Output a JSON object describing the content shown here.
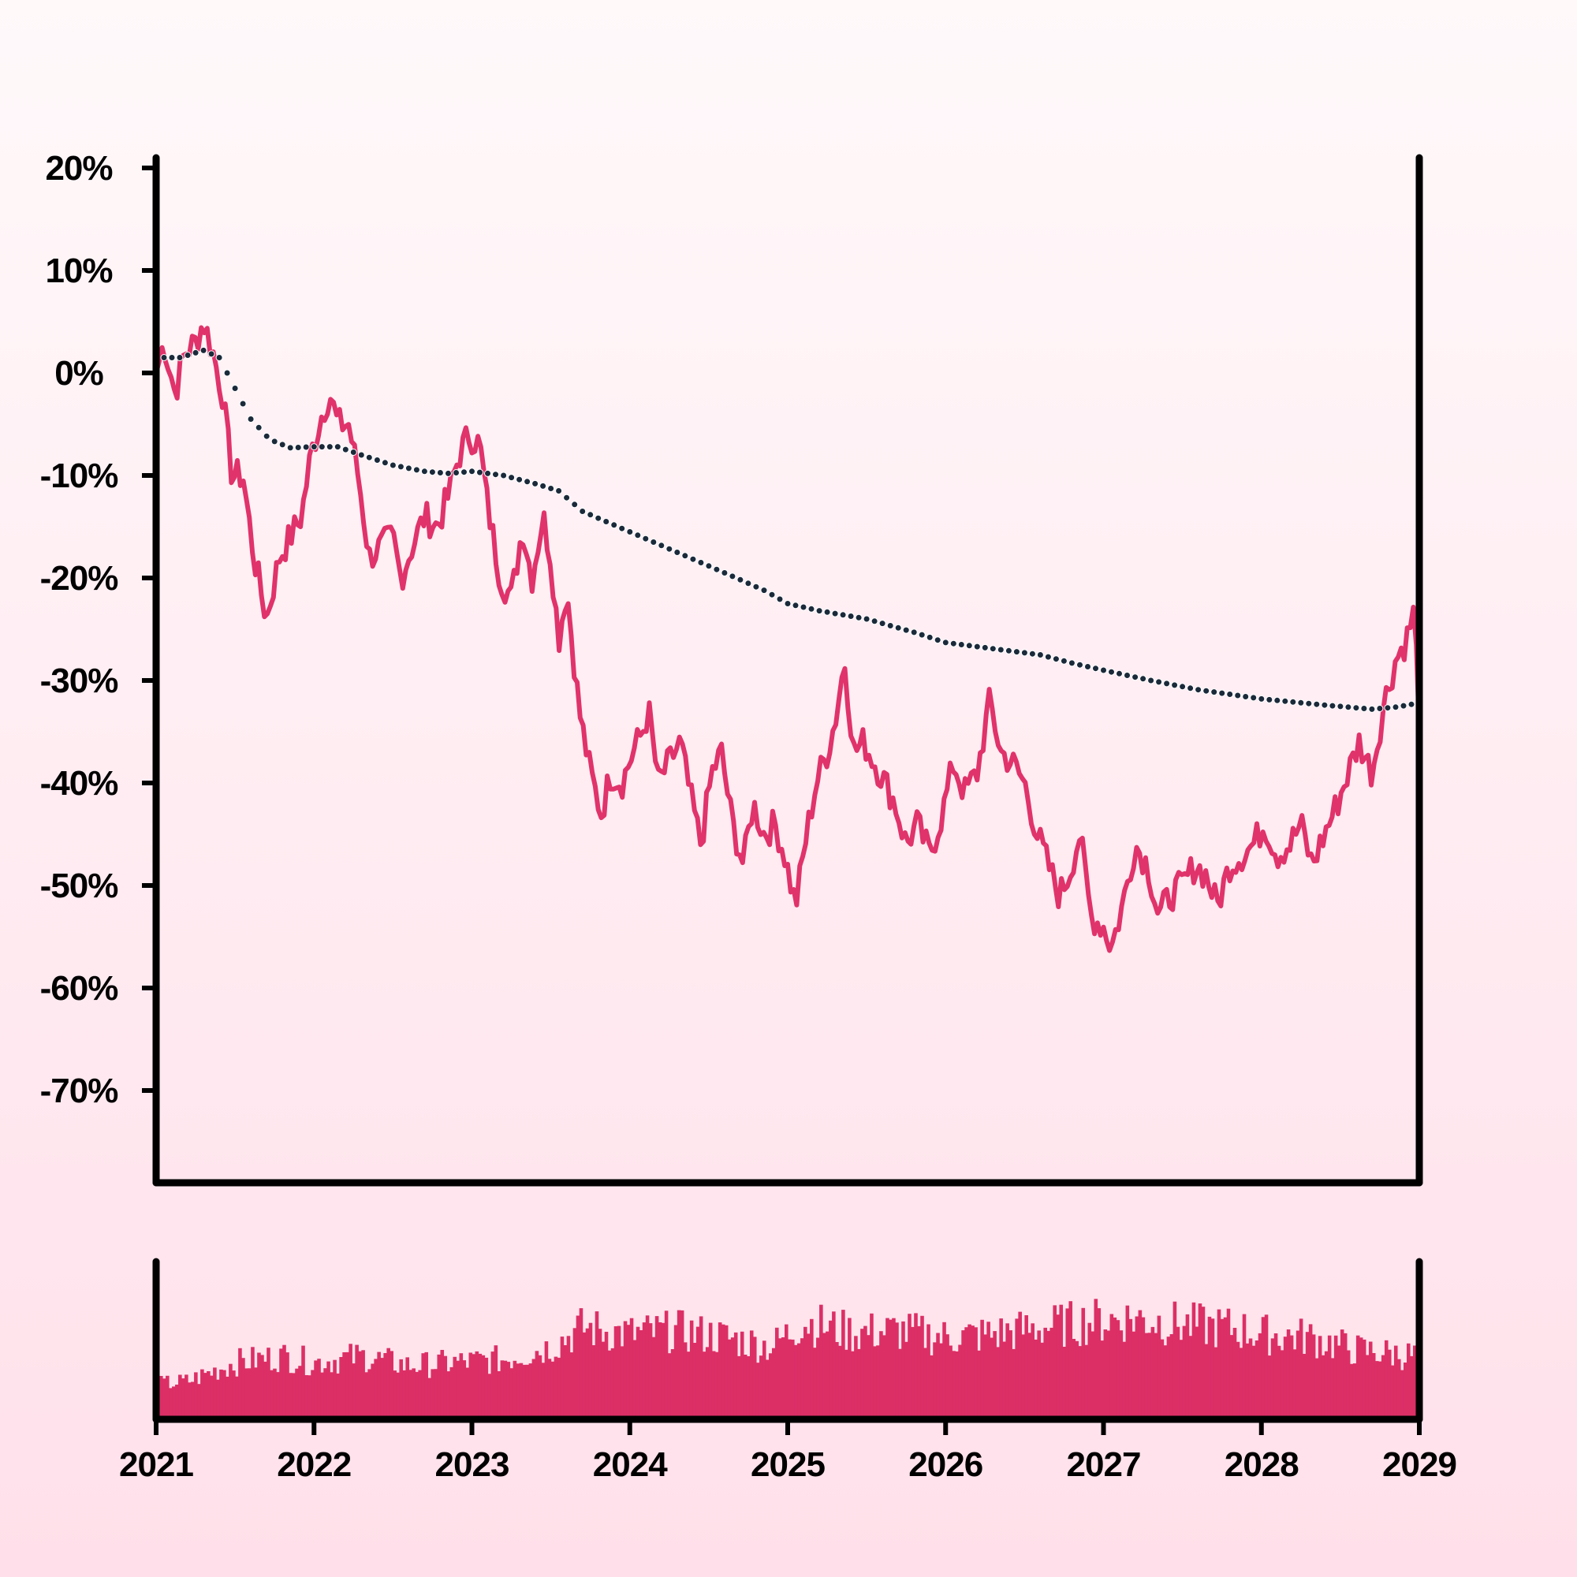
{
  "chart_data": {
    "type": "line",
    "title": "",
    "xlabel": "",
    "ylabel": "",
    "x_range": [
      2021,
      2029
    ],
    "ylim": [
      -78,
      21
    ],
    "y_ticks": [
      20,
      10,
      0,
      -10,
      -20,
      -30,
      -40,
      -50,
      -60,
      -70
    ],
    "y_tick_labels": [
      "20%",
      "10%",
      "0%",
      "-10%",
      "-20%",
      "-30%",
      "-40%",
      "-50%",
      "-60%",
      "-70%"
    ],
    "x_ticks": [
      2021,
      2022,
      2023,
      2024,
      2025,
      2026,
      2027,
      2028,
      2029
    ],
    "x_tick_labels": [
      "2021",
      "2022",
      "2023",
      "2024",
      "2025",
      "2026",
      "2027",
      "2028",
      "2029"
    ],
    "grid": false,
    "colors": {
      "price": "#e0336b",
      "trend": "#1a2a3a",
      "volume": "#dc2f66",
      "axis": "#000000"
    },
    "series": [
      {
        "role": "price",
        "style": "solid-line",
        "points": [
          [
            2021.0,
            0
          ],
          [
            2021.05,
            3
          ],
          [
            2021.12,
            -2
          ],
          [
            2021.18,
            2
          ],
          [
            2021.25,
            3
          ],
          [
            2021.3,
            5
          ],
          [
            2021.36,
            2
          ],
          [
            2021.42,
            -2
          ],
          [
            2021.48,
            -10
          ],
          [
            2021.55,
            -10
          ],
          [
            2021.62,
            -18
          ],
          [
            2021.7,
            -24
          ],
          [
            2021.78,
            -18
          ],
          [
            2021.85,
            -16
          ],
          [
            2021.92,
            -14
          ],
          [
            2021.98,
            -8
          ],
          [
            2022.05,
            -4
          ],
          [
            2022.1,
            -2
          ],
          [
            2022.15,
            -5
          ],
          [
            2022.22,
            -5
          ],
          [
            2022.28,
            -10
          ],
          [
            2022.35,
            -18
          ],
          [
            2022.42,
            -17
          ],
          [
            2022.5,
            -16
          ],
          [
            2022.55,
            -20
          ],
          [
            2022.62,
            -17
          ],
          [
            2022.7,
            -14
          ],
          [
            2022.78,
            -15
          ],
          [
            2022.85,
            -12
          ],
          [
            2022.92,
            -8
          ],
          [
            2022.98,
            -6
          ],
          [
            2023.05,
            -7
          ],
          [
            2023.1,
            -13
          ],
          [
            2023.18,
            -20
          ],
          [
            2023.25,
            -22
          ],
          [
            2023.32,
            -15
          ],
          [
            2023.38,
            -20
          ],
          [
            2023.45,
            -14
          ],
          [
            2023.5,
            -18
          ],
          [
            2023.55,
            -26
          ],
          [
            2023.6,
            -21
          ],
          [
            2023.68,
            -33
          ],
          [
            2023.75,
            -39
          ],
          [
            2023.82,
            -43
          ],
          [
            2023.88,
            -39
          ],
          [
            2023.95,
            -40
          ],
          [
            2024.02,
            -37
          ],
          [
            2024.08,
            -35
          ],
          [
            2024.12,
            -33
          ],
          [
            2024.18,
            -40
          ],
          [
            2024.25,
            -38
          ],
          [
            2024.32,
            -36
          ],
          [
            2024.38,
            -41
          ],
          [
            2024.45,
            -46
          ],
          [
            2024.52,
            -39
          ],
          [
            2024.58,
            -37
          ],
          [
            2024.65,
            -44
          ],
          [
            2024.72,
            -48
          ],
          [
            2024.78,
            -42
          ],
          [
            2024.85,
            -45
          ],
          [
            2024.92,
            -44
          ],
          [
            2024.98,
            -47
          ],
          [
            2025.05,
            -52
          ],
          [
            2025.12,
            -45
          ],
          [
            2025.18,
            -40
          ],
          [
            2025.25,
            -37
          ],
          [
            2025.3,
            -34
          ],
          [
            2025.36,
            -28
          ],
          [
            2025.42,
            -37
          ],
          [
            2025.48,
            -36
          ],
          [
            2025.55,
            -38
          ],
          [
            2025.62,
            -40
          ],
          [
            2025.68,
            -42
          ],
          [
            2025.75,
            -46
          ],
          [
            2025.82,
            -44
          ],
          [
            2025.9,
            -47
          ],
          [
            2025.98,
            -43
          ],
          [
            2026.05,
            -38
          ],
          [
            2026.12,
            -41
          ],
          [
            2026.2,
            -39
          ],
          [
            2026.28,
            -32
          ],
          [
            2026.35,
            -37
          ],
          [
            2026.42,
            -38
          ],
          [
            2026.5,
            -40
          ],
          [
            2026.58,
            -45
          ],
          [
            2026.65,
            -48
          ],
          [
            2026.72,
            -51
          ],
          [
            2026.78,
            -49
          ],
          [
            2026.85,
            -45
          ],
          [
            2026.92,
            -53
          ],
          [
            2027.0,
            -54
          ],
          [
            2027.05,
            -56
          ],
          [
            2027.12,
            -52
          ],
          [
            2027.2,
            -46
          ],
          [
            2027.28,
            -48
          ],
          [
            2027.35,
            -53
          ],
          [
            2027.42,
            -51
          ],
          [
            2027.5,
            -50
          ],
          [
            2027.58,
            -48
          ],
          [
            2027.65,
            -49
          ],
          [
            2027.72,
            -52
          ],
          [
            2027.8,
            -48
          ],
          [
            2027.88,
            -47
          ],
          [
            2027.95,
            -46
          ],
          [
            2028.02,
            -44
          ],
          [
            2028.1,
            -47
          ],
          [
            2028.18,
            -46
          ],
          [
            2028.25,
            -44
          ],
          [
            2028.32,
            -48
          ],
          [
            2028.4,
            -45
          ],
          [
            2028.48,
            -42
          ],
          [
            2028.55,
            -39
          ],
          [
            2028.62,
            -36
          ],
          [
            2028.7,
            -39
          ],
          [
            2028.78,
            -32
          ],
          [
            2028.85,
            -28
          ],
          [
            2028.92,
            -26
          ],
          [
            2028.97,
            -23
          ],
          [
            2029.0,
            -35
          ]
        ]
      },
      {
        "role": "trend",
        "style": "dotted-line",
        "points": [
          [
            2021.0,
            1.5
          ],
          [
            2021.15,
            1.5
          ],
          [
            2021.3,
            2.2
          ],
          [
            2021.4,
            1.5
          ],
          [
            2021.5,
            -1.5
          ],
          [
            2021.6,
            -4.5
          ],
          [
            2021.72,
            -6.5
          ],
          [
            2021.85,
            -7.3
          ],
          [
            2022.0,
            -7.2
          ],
          [
            2022.15,
            -7.2
          ],
          [
            2022.3,
            -8.0
          ],
          [
            2022.5,
            -9.0
          ],
          [
            2022.7,
            -9.6
          ],
          [
            2022.85,
            -9.8
          ],
          [
            2023.0,
            -9.6
          ],
          [
            2023.2,
            -10.0
          ],
          [
            2023.4,
            -10.8
          ],
          [
            2023.55,
            -11.5
          ],
          [
            2023.7,
            -13.5
          ],
          [
            2024.0,
            -15.5
          ],
          [
            2024.3,
            -17.5
          ],
          [
            2024.6,
            -19.5
          ],
          [
            2024.85,
            -21.2
          ],
          [
            2025.0,
            -22.5
          ],
          [
            2025.2,
            -23.2
          ],
          [
            2025.5,
            -24.0
          ],
          [
            2025.8,
            -25.3
          ],
          [
            2026.0,
            -26.3
          ],
          [
            2026.3,
            -26.9
          ],
          [
            2026.6,
            -27.5
          ],
          [
            2026.8,
            -28.3
          ],
          [
            2027.0,
            -29.0
          ],
          [
            2027.3,
            -30.0
          ],
          [
            2027.6,
            -30.9
          ],
          [
            2028.0,
            -31.8
          ],
          [
            2028.4,
            -32.4
          ],
          [
            2028.7,
            -32.8
          ],
          [
            2028.85,
            -32.6
          ],
          [
            2029.0,
            -32.2
          ]
        ]
      },
      {
        "role": "volume",
        "style": "bars",
        "scale": "relative (0 = panel baseline, 1 = panel top; no axis labels printed)",
        "profile": [
          [
            2021.0,
            0.22
          ],
          [
            2021.2,
            0.24
          ],
          [
            2021.5,
            0.36
          ],
          [
            2021.8,
            0.4
          ],
          [
            2022.0,
            0.36
          ],
          [
            2022.3,
            0.4
          ],
          [
            2022.6,
            0.34
          ],
          [
            2022.9,
            0.36
          ],
          [
            2023.2,
            0.38
          ],
          [
            2023.5,
            0.46
          ],
          [
            2023.7,
            0.58
          ],
          [
            2024.0,
            0.54
          ],
          [
            2024.3,
            0.56
          ],
          [
            2024.6,
            0.52
          ],
          [
            2024.9,
            0.46
          ],
          [
            2025.1,
            0.62
          ],
          [
            2025.4,
            0.55
          ],
          [
            2025.7,
            0.56
          ],
          [
            2026.0,
            0.52
          ],
          [
            2026.3,
            0.54
          ],
          [
            2026.6,
            0.58
          ],
          [
            2026.9,
            0.62
          ],
          [
            2027.2,
            0.64
          ],
          [
            2027.5,
            0.6
          ],
          [
            2027.8,
            0.58
          ],
          [
            2028.0,
            0.54
          ],
          [
            2028.3,
            0.52
          ],
          [
            2028.6,
            0.44
          ],
          [
            2029.0,
            0.4
          ]
        ]
      }
    ]
  }
}
